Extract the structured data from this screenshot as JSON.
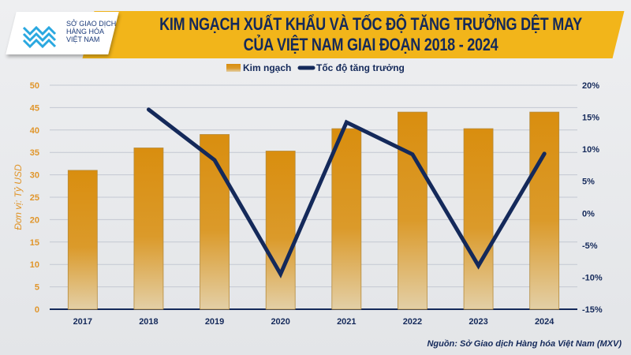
{
  "header": {
    "logo": {
      "line1": "SỞ GIAO DỊCH",
      "line2": "HÀNG HÓA",
      "line3": "VIỆT NAM"
    },
    "title_line1": "KIM NGẠCH XUẤT KHẨU VÀ TỐC ĐỘ TĂNG TRƯỞNG DỆT MAY",
    "title_line2": "CỦA VIỆT NAM GIAI ĐOẠN 2018 - 2024"
  },
  "source": "Nguồn: Sở Giao dịch Hàng hóa Việt Nam (MXV)",
  "colors": {
    "bar": "#d98e0f",
    "line": "#14295a",
    "axis_left": "#e0952a",
    "title_bg": "#f2b51a"
  },
  "chart_data": {
    "type": "bar+line",
    "title": "KIM NGẠCH XUẤT KHẨU VÀ TỐC ĐỘ TĂNG TRƯỞNG DỆT MAY CỦA VIỆT NAM GIAI ĐOẠN 2018 - 2024",
    "categories": [
      "2017",
      "2018",
      "2019",
      "2020",
      "2021",
      "2022",
      "2023",
      "2024"
    ],
    "series": [
      {
        "name": "Kim ngạch",
        "type": "bar",
        "axis": "left",
        "values": [
          31.0,
          36.0,
          39.0,
          35.3,
          40.3,
          44.0,
          40.3,
          44.0
        ]
      },
      {
        "name": "Tốc độ tăng trưởng",
        "type": "line",
        "axis": "right",
        "values": [
          null,
          16.2,
          8.3,
          -9.5,
          14.2,
          9.2,
          -8.2,
          9.3
        ]
      }
    ],
    "ylabel": "Đơn vị: Tỷ USD",
    "ylim": [
      0,
      50
    ],
    "yticks": [
      "0",
      "5",
      "10",
      "15",
      "20",
      "25",
      "30",
      "35",
      "40",
      "45",
      "50"
    ],
    "y2lim": [
      -15,
      20
    ],
    "y2ticks": [
      "-15%",
      "-10%",
      "-5%",
      "0%",
      "5%",
      "10%",
      "15%",
      "20%"
    ],
    "legend": {
      "position": "top-center",
      "items": [
        "Kim ngạch",
        "Tốc độ tăng trưởng"
      ]
    },
    "grid": true
  }
}
